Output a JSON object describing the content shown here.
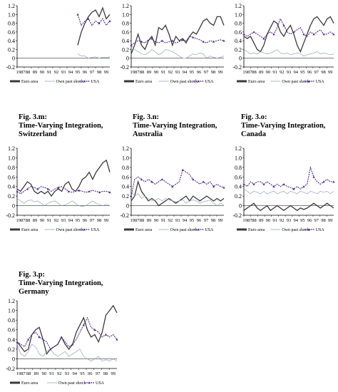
{
  "legend": {
    "euro": "Euro area",
    "own": "Own past shock",
    "usa": "USA"
  },
  "axis": {
    "y_ticks": [
      "1.2",
      "1.0",
      "0.8",
      "0.6",
      "0.4",
      "0.2",
      "0",
      "-0.2"
    ],
    "x_ticks": [
      "1987",
      "88",
      "89",
      "90",
      "91",
      "92",
      "93",
      "94",
      "95",
      "96",
      "97",
      "98",
      "99"
    ]
  },
  "colors": {
    "euro": "#3a3a3a",
    "own": "#9aa0c8",
    "usa": "#4b2a8c"
  },
  "panels": [
    {
      "id": "a",
      "caption_lines": []
    },
    {
      "id": "b",
      "caption_lines": []
    },
    {
      "id": "c",
      "caption_lines": []
    },
    {
      "id": "m",
      "caption_lines": [
        "Fig. 3.m:",
        "Time-Varying Integration,",
        "Switzerland"
      ]
    },
    {
      "id": "n",
      "caption_lines": [
        "Fig. 3.n:",
        "Time-Varying Integration,",
        "Australia"
      ]
    },
    {
      "id": "o",
      "caption_lines": [
        "Fig. 3.o:",
        "Time-Varying Integration,",
        "Canada"
      ]
    },
    {
      "id": "p",
      "caption_lines": [
        "Fig. 3.p:",
        "Time-Varying Integration,",
        "Germany"
      ]
    }
  ],
  "chart_data": [
    {
      "type": "line",
      "xlim": [
        1987,
        2000
      ],
      "ylim": [
        -0.2,
        1.2
      ],
      "x_start": 1995.5,
      "series": [
        {
          "name": "Euro area",
          "values": [
            0.3,
            0.6,
            0.8,
            0.95,
            1.05,
            1.1,
            0.95,
            1.15,
            0.9,
            1.0
          ]
        },
        {
          "name": "Own past shock",
          "values": [
            0.1,
            0.05,
            0.05,
            0.0,
            0.02,
            0.03,
            0.0,
            0.02,
            0.01,
            0.03
          ]
        },
        {
          "name": "USA",
          "values": [
            1.0,
            0.75,
            0.85,
            0.9,
            0.75,
            0.85,
            0.8,
            0.9,
            0.75,
            0.85
          ]
        }
      ]
    },
    {
      "type": "line",
      "xlim": [
        1987,
        2000
      ],
      "ylim": [
        -0.2,
        1.2
      ],
      "x_start": 1987,
      "series": [
        {
          "name": "Euro area",
          "values": [
            0.1,
            0.3,
            0.55,
            0.3,
            0.2,
            0.4,
            0.5,
            0.3,
            0.7,
            0.65,
            0.75,
            0.55,
            0.3,
            0.5,
            0.4,
            0.45,
            0.35,
            0.5,
            0.6,
            0.55,
            0.7,
            0.85,
            0.9,
            0.8,
            0.75,
            0.95,
            0.95,
            0.75
          ]
        },
        {
          "name": "Own past shock",
          "values": [
            0.3,
            0.2,
            0.15,
            0.1,
            0.08,
            0.12,
            0.2,
            0.15,
            0.08,
            0.12,
            0.2,
            0.18,
            0.15,
            0.1,
            0.05,
            0.0,
            0.0,
            0.05,
            0.1,
            0.08,
            0.12,
            0.1,
            0.0,
            0.05,
            0.02,
            0.0,
            0.02,
            0.05
          ]
        },
        {
          "name": "USA",
          "values": [
            0.3,
            0.35,
            0.4,
            0.38,
            0.35,
            0.42,
            0.45,
            0.38,
            0.35,
            0.4,
            0.35,
            0.38,
            0.4,
            0.35,
            0.38,
            0.42,
            0.4,
            0.5,
            0.48,
            0.45,
            0.42,
            0.38,
            0.35,
            0.4,
            0.38,
            0.4,
            0.42,
            0.4
          ]
        }
      ]
    },
    {
      "type": "line",
      "xlim": [
        1987,
        2000
      ],
      "ylim": [
        -0.2,
        1.2
      ],
      "x_start": 1987,
      "series": [
        {
          "name": "Euro area",
          "values": [
            0.5,
            0.45,
            0.5,
            0.35,
            0.2,
            0.15,
            0.3,
            0.55,
            0.7,
            0.85,
            0.8,
            0.6,
            0.5,
            0.65,
            0.75,
            0.55,
            0.3,
            0.15,
            0.35,
            0.55,
            0.75,
            0.9,
            0.95,
            0.85,
            0.75,
            0.9,
            0.95,
            0.8
          ]
        },
        {
          "name": "Own past shock",
          "values": [
            0.2,
            0.15,
            0.1,
            0.12,
            0.1,
            0.15,
            0.12,
            0.1,
            0.12,
            0.15,
            0.2,
            0.12,
            0.1,
            0.12,
            0.08,
            0.1,
            0.12,
            0.1,
            0.05,
            0.08,
            0.1,
            0.12,
            0.15,
            0.1,
            0.12,
            0.1,
            0.08,
            0.1
          ]
        },
        {
          "name": "USA",
          "values": [
            0.55,
            0.5,
            0.55,
            0.6,
            0.55,
            0.5,
            0.45,
            0.55,
            0.6,
            0.55,
            0.7,
            0.9,
            0.75,
            0.6,
            0.55,
            0.6,
            0.65,
            0.7,
            0.55,
            0.5,
            0.6,
            0.55,
            0.6,
            0.65,
            0.55,
            0.55,
            0.6,
            0.55
          ]
        }
      ]
    },
    {
      "type": "line",
      "xlim": [
        1987,
        2000
      ],
      "ylim": [
        -0.2,
        1.2
      ],
      "x_start": 1987,
      "series": [
        {
          "name": "Euro area",
          "values": [
            0.35,
            0.3,
            0.4,
            0.5,
            0.45,
            0.3,
            0.25,
            0.3,
            0.25,
            0.3,
            0.2,
            0.3,
            0.35,
            0.3,
            0.45,
            0.5,
            0.35,
            0.3,
            0.4,
            0.55,
            0.6,
            0.7,
            0.55,
            0.7,
            0.8,
            0.9,
            0.95,
            0.7
          ]
        },
        {
          "name": "Own past shock",
          "values": [
            0.15,
            0.1,
            0.05,
            0.1,
            0.12,
            0.08,
            0.1,
            0.05,
            0.0,
            0.05,
            0.08,
            0.1,
            0.05,
            0.0,
            0.02,
            0.05,
            0.1,
            0.05,
            0.0,
            -0.02,
            0.0,
            0.05,
            0.1,
            0.05,
            0.02,
            0.0,
            0.03,
            0.0
          ]
        },
        {
          "name": "USA",
          "values": [
            0.3,
            0.25,
            0.3,
            0.35,
            0.4,
            0.38,
            0.35,
            0.4,
            0.38,
            0.35,
            0.3,
            0.35,
            0.38,
            0.4,
            0.35,
            0.3,
            0.28,
            0.3,
            0.32,
            0.3,
            0.28,
            0.3,
            0.32,
            0.3,
            0.28,
            0.3,
            0.3,
            0.28
          ]
        }
      ]
    },
    {
      "type": "line",
      "xlim": [
        1987,
        2000
      ],
      "ylim": [
        -0.2,
        1.2
      ],
      "x_start": 1987,
      "series": [
        {
          "name": "Euro area",
          "values": [
            0.1,
            0.2,
            0.5,
            0.3,
            0.2,
            0.1,
            0.15,
            0.1,
            0.0,
            0.05,
            0.1,
            0.15,
            0.1,
            0.05,
            0.1,
            0.15,
            0.2,
            0.1,
            0.2,
            0.15,
            0.1,
            0.15,
            0.2,
            0.15,
            0.1,
            0.15,
            0.1,
            0.15
          ]
        },
        {
          "name": "Own past shock",
          "values": [
            0.3,
            0.2,
            0.25,
            0.15,
            0.2,
            0.15,
            0.1,
            0.12,
            0.15,
            0.1,
            0.15,
            0.12,
            0.1,
            0.08,
            0.1,
            0.12,
            0.05,
            0.1,
            0.12,
            0.1,
            0.05,
            0.08,
            0.1,
            0.12,
            0.05,
            0.0,
            0.05,
            0.02
          ]
        },
        {
          "name": "USA",
          "values": [
            0.2,
            0.55,
            0.6,
            0.55,
            0.5,
            0.55,
            0.5,
            0.45,
            0.5,
            0.55,
            0.5,
            0.45,
            0.4,
            0.45,
            0.5,
            0.75,
            0.7,
            0.65,
            0.55,
            0.5,
            0.45,
            0.5,
            0.45,
            0.5,
            0.4,
            0.45,
            0.4,
            0.38
          ]
        }
      ]
    },
    {
      "type": "line",
      "xlim": [
        1987,
        2000
      ],
      "ylim": [
        -0.2,
        1.2
      ],
      "x_start": 1987,
      "series": [
        {
          "name": "Euro area",
          "values": [
            -0.1,
            -0.05,
            0.0,
            0.05,
            -0.05,
            -0.1,
            -0.05,
            0.0,
            -0.1,
            -0.05,
            0.0,
            -0.05,
            -0.1,
            -0.05,
            0.0,
            -0.05,
            -0.1,
            -0.05,
            -0.08,
            -0.05,
            0.0,
            0.05,
            0.0,
            -0.05,
            0.0,
            0.05,
            0.0,
            -0.05
          ]
        },
        {
          "name": "Own past shock",
          "values": [
            0.35,
            0.3,
            0.25,
            0.3,
            0.28,
            0.25,
            0.3,
            0.25,
            0.28,
            0.3,
            0.25,
            0.28,
            0.3,
            0.25,
            0.3,
            0.28,
            0.25,
            0.3,
            0.28,
            0.25,
            0.3,
            0.28,
            0.25,
            0.3,
            0.28,
            0.3,
            0.25,
            0.3
          ]
        },
        {
          "name": "USA",
          "values": [
            0.45,
            0.4,
            0.5,
            0.45,
            0.5,
            0.5,
            0.45,
            0.5,
            0.45,
            0.4,
            0.45,
            0.4,
            0.45,
            0.4,
            0.38,
            0.35,
            0.4,
            0.35,
            0.4,
            0.45,
            0.8,
            0.6,
            0.5,
            0.45,
            0.5,
            0.55,
            0.5,
            0.5
          ]
        }
      ]
    },
    {
      "type": "line",
      "xlim": [
        1987,
        2000
      ],
      "ylim": [
        -0.2,
        1.2
      ],
      "x_start": 1987,
      "series": [
        {
          "name": "Euro area",
          "values": [
            0.35,
            0.25,
            0.15,
            0.2,
            0.5,
            0.6,
            0.65,
            0.4,
            0.1,
            0.2,
            0.25,
            0.3,
            0.45,
            0.3,
            0.2,
            0.3,
            0.55,
            0.7,
            0.85,
            0.6,
            0.45,
            0.5,
            0.35,
            0.55,
            0.9,
            1.0,
            1.1,
            0.95
          ]
        },
        {
          "name": "Own past shock",
          "values": [
            0.3,
            0.1,
            0.05,
            0.15,
            0.3,
            0.25,
            0.1,
            0.05,
            0.15,
            0.2,
            0.1,
            0.05,
            0.1,
            0.15,
            0.05,
            0.1,
            0.15,
            0.2,
            0.05,
            0.0,
            -0.05,
            0.0,
            0.05,
            -0.05,
            -0.02,
            -0.05,
            0.0,
            -0.05
          ]
        },
        {
          "name": "USA",
          "values": [
            0.35,
            0.3,
            0.25,
            0.4,
            0.5,
            0.55,
            0.45,
            0.4,
            0.35,
            0.2,
            0.25,
            0.3,
            0.45,
            0.35,
            0.25,
            0.3,
            0.4,
            0.55,
            0.7,
            0.85,
            0.65,
            0.6,
            0.55,
            0.45,
            0.5,
            0.45,
            0.5,
            0.4
          ]
        }
      ]
    }
  ]
}
